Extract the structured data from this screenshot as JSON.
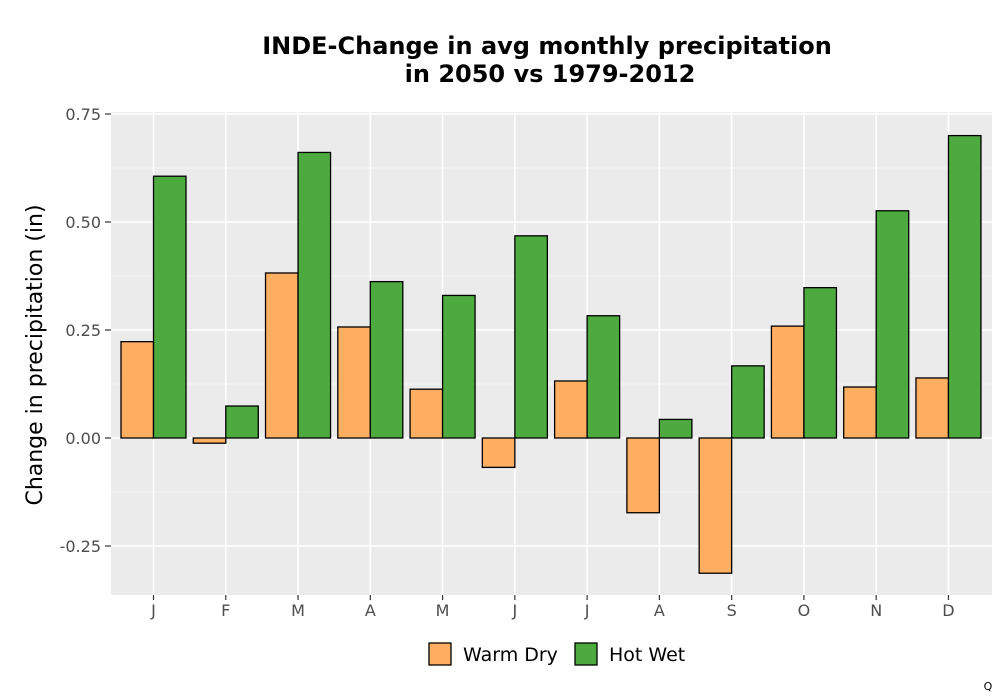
{
  "chart_data": {
    "type": "bar",
    "title_lines": [
      "INDE-Change in avg monthly precipitation",
      "in 2050 vs 1979-2012"
    ],
    "xlabel": "",
    "ylabel": "Change in precipitation (in)",
    "categories": [
      "J",
      "F",
      "M",
      "A",
      "M",
      "J",
      "J",
      "A",
      "S",
      "O",
      "N",
      "D"
    ],
    "series": [
      {
        "name": "Warm Dry",
        "color": "#fdae61",
        "values": [
          0.223,
          -0.012,
          0.382,
          0.257,
          0.113,
          -0.068,
          0.132,
          -0.173,
          -0.313,
          0.259,
          0.118,
          0.139
        ]
      },
      {
        "name": "Hot Wet",
        "color": "#4daa3f",
        "values": [
          0.606,
          0.074,
          0.661,
          0.362,
          0.33,
          0.468,
          0.283,
          0.043,
          0.167,
          0.348,
          0.526,
          0.7
        ]
      }
    ],
    "ylim": [
      -0.36,
      0.75
    ],
    "yticks": [
      -0.25,
      0.0,
      0.25,
      0.5,
      0.75
    ],
    "ytick_labels": [
      "-0.25",
      "0.00",
      "0.25",
      "0.50",
      "0.75"
    ],
    "grid": true,
    "legend_position": "bottom",
    "panel_background": "#ebebeb",
    "corner_mark": "Q"
  }
}
